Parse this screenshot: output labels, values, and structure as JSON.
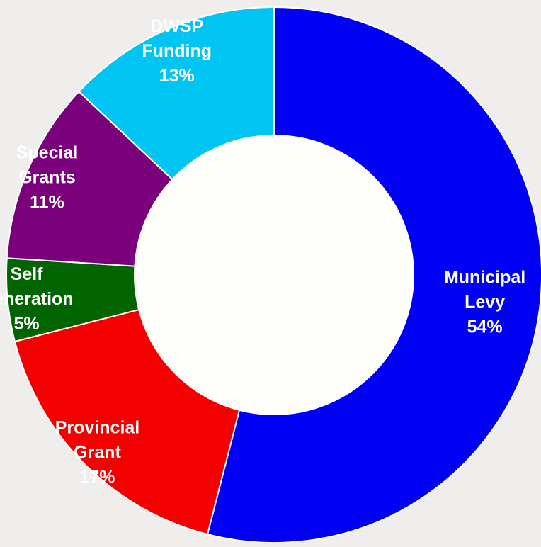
{
  "chart_data": {
    "type": "pie",
    "variant": "donut",
    "title": "",
    "legend": "none",
    "slices": [
      {
        "label_lines": [
          "Municipal",
          "Levy"
        ],
        "value_label": "54%",
        "value": 54,
        "color": "#0000f2"
      },
      {
        "label_lines": [
          "Provincial",
          "Grant"
        ],
        "value_label": "17%",
        "value": 17,
        "color": "#f40000"
      },
      {
        "label_lines": [
          "Self",
          "Generation"
        ],
        "value_label": "5%",
        "value": 5,
        "color": "#006400"
      },
      {
        "label_lines": [
          "Special",
          "Grants"
        ],
        "value_label": "11%",
        "value": 11,
        "color": "#7b007b"
      },
      {
        "label_lines": [
          "DWSP",
          "Funding"
        ],
        "value_label": "13%",
        "value": 13,
        "color": "#00c5f3"
      }
    ],
    "colors": {
      "background": "#efeeec",
      "hole": "#fefefa",
      "separator": "#ffffff",
      "label_text": "#ffffff"
    }
  }
}
